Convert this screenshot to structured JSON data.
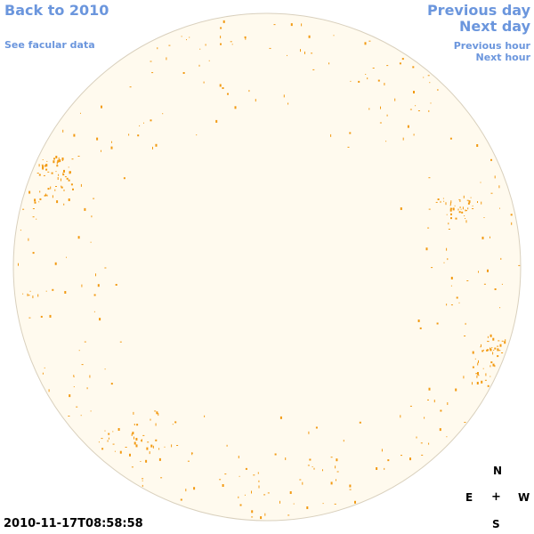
{
  "nav": {
    "back_label": "Back to 2010",
    "facular_label": "See facular data",
    "prev_day_label": "Previous day",
    "next_day_label": "Next day",
    "prev_hour_label": "Previous hour",
    "next_hour_label": "Next hour"
  },
  "timestamp": "2010-11-17T08:58:58",
  "compass": {
    "north": "N",
    "east": "E",
    "center": "+",
    "west": "W",
    "south": "S"
  },
  "colors": {
    "link": "#6b96dd",
    "disk_fill": "#fffaee",
    "disk_stroke": "#d9d0bd",
    "feature": "#f29a12"
  },
  "sun_image": {
    "feature_clusters": [
      {
        "name": "cluster-east-limb",
        "dots": 60
      },
      {
        "name": "cluster-southwest-limb",
        "dots": 55
      },
      {
        "name": "cluster-west-limb",
        "dots": 35
      },
      {
        "name": "cluster-south",
        "dots": 30
      }
    ]
  }
}
